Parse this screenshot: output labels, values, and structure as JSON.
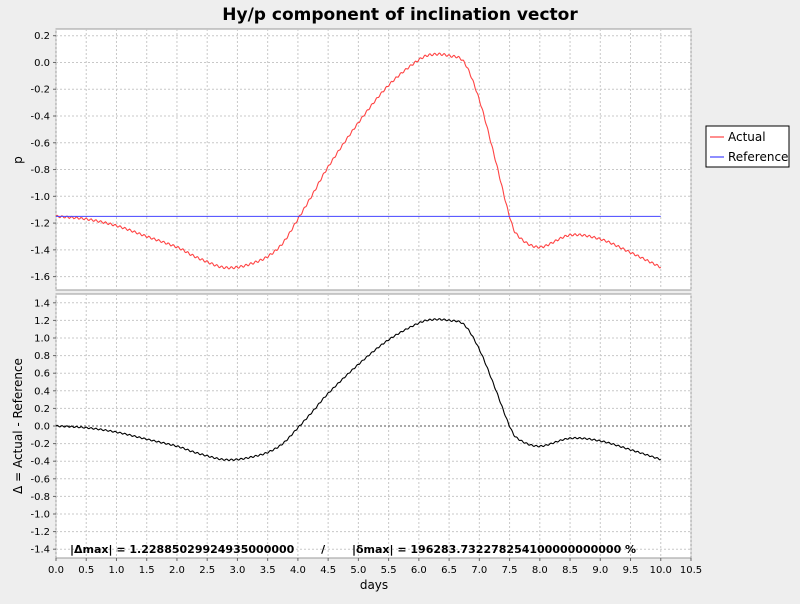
{
  "chart_data": [
    {
      "type": "line",
      "title": "Hy/p component of inclination vector",
      "xlabel": "days",
      "ylabel": "p",
      "xlim": [
        0,
        10.5
      ],
      "ylim": [
        -1.7,
        0.25
      ],
      "x_ticks": [
        "0.0",
        "0.5",
        "1.0",
        "1.5",
        "2.0",
        "2.5",
        "3.0",
        "3.5",
        "4.0",
        "4.5",
        "5.0",
        "5.5",
        "6.0",
        "6.5",
        "7.0",
        "7.5",
        "8.0",
        "8.5",
        "9.0",
        "9.5",
        "10.0",
        "10.5"
      ],
      "y_ticks": [
        "0.2",
        "0.0",
        "-0.2",
        "-0.4",
        "-0.6",
        "-0.8",
        "-1.0",
        "-1.2",
        "-1.4",
        "-1.6"
      ],
      "grid": true,
      "legend_position": "right",
      "series": [
        {
          "name": "Actual",
          "color": "#ff4444",
          "x": [
            0.0,
            0.5,
            1.0,
            1.5,
            2.0,
            2.25,
            2.5,
            2.75,
            3.0,
            3.25,
            3.5,
            3.75,
            4.0,
            4.25,
            4.5,
            5.0,
            5.5,
            6.0,
            6.25,
            6.5,
            6.75,
            7.0,
            7.25,
            7.5,
            7.65,
            8.0,
            8.5,
            9.0,
            9.5,
            10.0
          ],
          "y": [
            -1.15,
            -1.17,
            -1.22,
            -1.3,
            -1.38,
            -1.44,
            -1.49,
            -1.53,
            -1.53,
            -1.5,
            -1.45,
            -1.35,
            -1.17,
            -0.98,
            -0.78,
            -0.45,
            -0.17,
            0.02,
            0.06,
            0.05,
            0.0,
            -0.28,
            -0.7,
            -1.15,
            -1.3,
            -1.38,
            -1.29,
            -1.32,
            -1.42,
            -1.53
          ]
        },
        {
          "name": "Reference",
          "color": "#4444ff",
          "x": [
            0.0,
            10.0
          ],
          "y": [
            -1.15,
            -1.15
          ]
        }
      ]
    },
    {
      "type": "line",
      "xlabel": "days",
      "ylabel": "Δ = Actual - Reference",
      "xlim": [
        0,
        10.5
      ],
      "ylim": [
        -1.5,
        1.5
      ],
      "x_ticks": [
        "0.0",
        "0.5",
        "1.0",
        "1.5",
        "2.0",
        "2.5",
        "3.0",
        "3.5",
        "4.0",
        "4.5",
        "5.0",
        "5.5",
        "6.0",
        "6.5",
        "7.0",
        "7.5",
        "8.0",
        "8.5",
        "9.0",
        "9.5",
        "10.0",
        "10.5"
      ],
      "y_ticks": [
        "1.4",
        "1.2",
        "1.0",
        "0.8",
        "0.6",
        "0.4",
        "0.2",
        "0.0",
        "-0.2",
        "-0.4",
        "-0.6",
        "-0.8",
        "-1.0",
        "-1.2",
        "-1.4"
      ],
      "grid": true,
      "annotation": "|Δmax| = 1.22885029924935000000       /       |δmax| = 196283.732278254100000000000 %",
      "series": [
        {
          "name": "Δ",
          "color": "#000000",
          "x": [
            0.0,
            0.5,
            1.0,
            1.5,
            2.0,
            2.25,
            2.5,
            2.75,
            3.0,
            3.25,
            3.5,
            3.75,
            4.0,
            4.25,
            4.5,
            5.0,
            5.5,
            6.0,
            6.25,
            6.5,
            6.75,
            7.0,
            7.25,
            7.5,
            7.65,
            8.0,
            8.5,
            9.0,
            9.5,
            10.0
          ],
          "y": [
            0.0,
            -0.02,
            -0.07,
            -0.15,
            -0.23,
            -0.29,
            -0.34,
            -0.38,
            -0.38,
            -0.35,
            -0.3,
            -0.2,
            -0.02,
            0.17,
            0.37,
            0.7,
            0.98,
            1.17,
            1.21,
            1.2,
            1.15,
            0.87,
            0.45,
            0.0,
            -0.15,
            -0.23,
            -0.14,
            -0.17,
            -0.27,
            -0.38
          ]
        }
      ]
    }
  ]
}
